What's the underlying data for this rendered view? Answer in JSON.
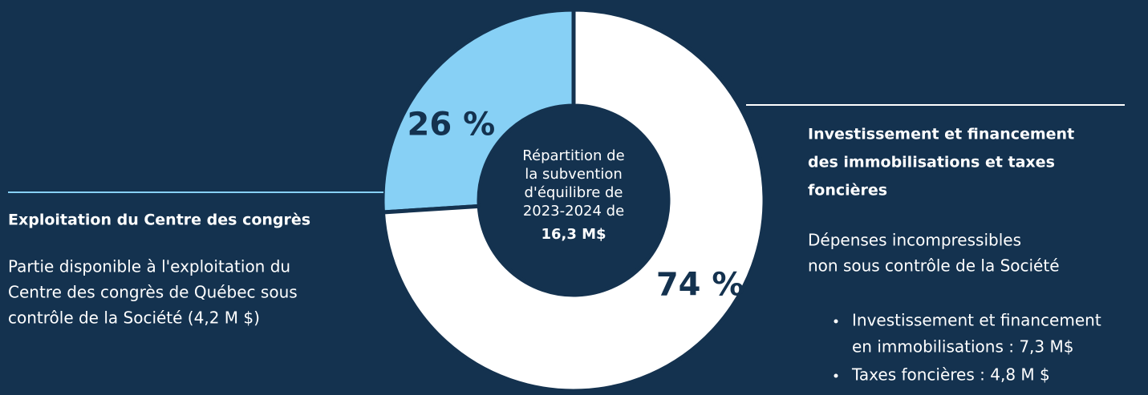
{
  "chart_data": {
    "type": "donut",
    "categories": [
      "Exploitation du Centre des congrès",
      "Investissement et financement des immobilisations et taxes foncières"
    ],
    "values": [
      26,
      74
    ],
    "value_labels": [
      "26 %",
      "74 %"
    ],
    "colors": [
      "#87d0f5",
      "#ffffff"
    ],
    "center_text": [
      "Répartition de",
      "la subvention",
      "d'équilibre de",
      "2023-2024 de"
    ],
    "center_value": "16,3 M$",
    "annotations": [
      {
        "title_lines": [
          "Exploitation du Centre des congrès"
        ],
        "text_lines": [
          "Partie disponible à l'exploitation du",
          "Centre des congrès de Québec sous",
          "contrôle de la Société (4,2 M $)"
        ]
      },
      {
        "title_lines": [
          "Investissement et financement",
          "des immobilisations et taxes",
          "foncières"
        ],
        "text_lines": [
          "Dépenses incompressibles",
          "non sous contrôle de la Société"
        ],
        "bullets": [
          [
            "Investissement et financement",
            "en immobilisations : 7,3 M$"
          ],
          [
            "Taxes foncières : 4,8 M $"
          ]
        ]
      }
    ]
  }
}
